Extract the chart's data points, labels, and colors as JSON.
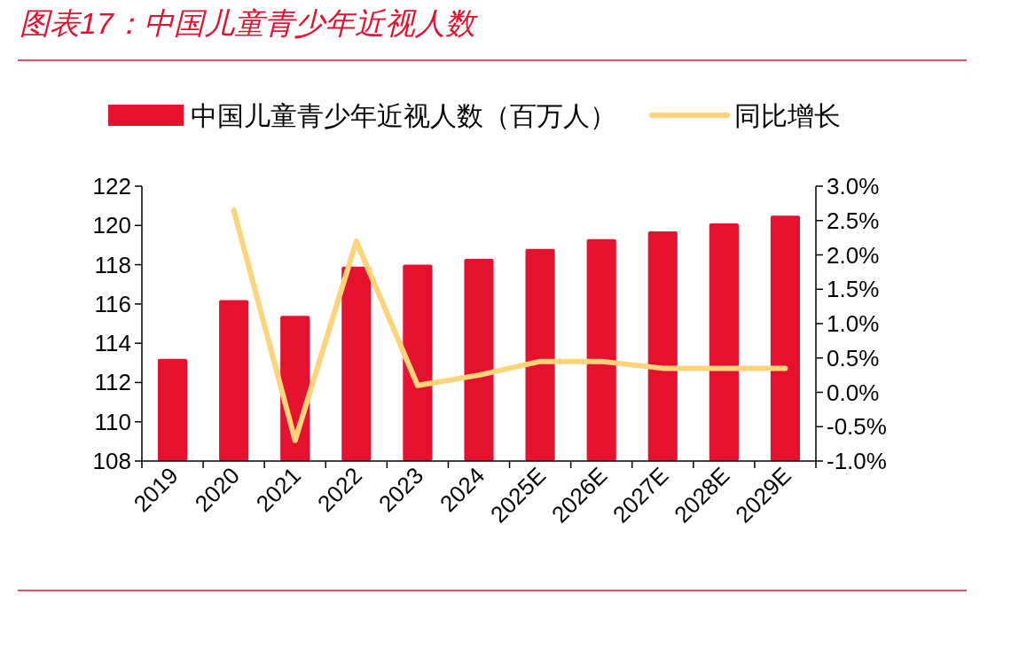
{
  "chart_data": {
    "type": "bar",
    "title": "图表17：中国儿童青少年近视人数",
    "categories": [
      "2019",
      "2020",
      "2021",
      "2022",
      "2023",
      "2024",
      "2025E",
      "2026E",
      "2027E",
      "2028E",
      "2029E"
    ],
    "series": [
      {
        "name": "中国儿童青少年近视人数（百万人）",
        "color": "#e4122e",
        "values": [
          113.2,
          116.2,
          115.4,
          117.9,
          118.0,
          118.3,
          118.8,
          119.3,
          119.7,
          120.1,
          120.5
        ]
      },
      {
        "name": "同比增长",
        "type": "line",
        "axis": "y2",
        "color": "#fdd479",
        "values": [
          null,
          2.65,
          -0.7,
          2.2,
          0.1,
          0.25,
          0.45,
          0.45,
          0.35,
          0.35,
          0.35
        ]
      }
    ],
    "ylim": [
      108,
      122
    ],
    "yticks": [
      108,
      110,
      112,
      114,
      116,
      118,
      120,
      122
    ],
    "y2lim": [
      -1.0,
      3.0
    ],
    "y2ticks": [
      {
        "value": -1.0,
        "label": "-1.0%"
      },
      {
        "value": -0.5,
        "label": "-0.5%"
      },
      {
        "value": 0.0,
        "label": "0.0%"
      },
      {
        "value": 0.5,
        "label": "0.5%"
      },
      {
        "value": 1.0,
        "label": "1.0%"
      },
      {
        "value": 1.5,
        "label": "1.5%"
      },
      {
        "value": 2.0,
        "label": "2.0%"
      },
      {
        "value": 2.5,
        "label": "2.5%"
      },
      {
        "value": 3.0,
        "label": "3.0%"
      }
    ],
    "legend": "top",
    "grid": false
  }
}
